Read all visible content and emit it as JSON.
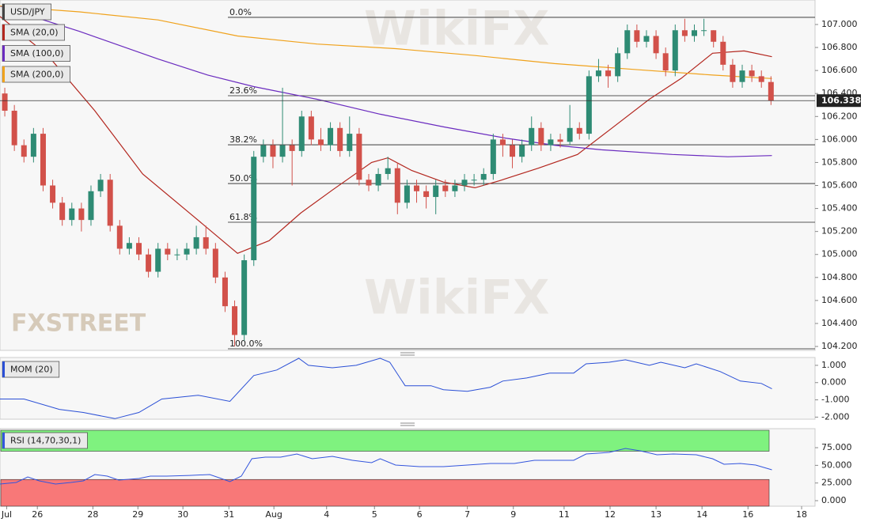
{
  "watermark": "WikiFX",
  "logo": "FXSTREET",
  "chart_data": [
    {
      "type": "candlestick",
      "symbol": "USD/JPY",
      "up_color": "#2e8b74",
      "down_color": "#d2514a",
      "open": [
        106.4,
        106.25,
        105.95,
        105.85,
        106.05,
        105.6,
        105.45,
        105.3,
        105.4,
        105.3,
        105.55,
        105.65,
        105.25,
        105.05,
        105.1,
        105.0,
        104.85,
        105.05,
        105.0,
        105.0,
        105.05,
        105.15,
        105.05,
        104.8,
        104.55,
        104.3,
        104.95,
        105.85,
        105.95,
        105.85,
        105.95,
        105.9,
        106.2,
        106.0,
        105.95,
        106.1,
        105.9,
        106.05,
        105.65,
        105.6,
        105.7,
        105.75,
        105.45,
        105.6,
        105.55,
        105.5,
        105.6,
        105.55,
        105.6,
        105.65,
        105.65,
        105.7,
        106.0,
        105.95,
        105.85,
        105.95,
        106.1,
        105.95,
        106.0,
        105.98,
        106.1,
        106.05,
        106.55,
        106.6,
        106.55,
        106.75,
        106.95,
        106.85,
        106.9,
        106.75,
        106.6,
        106.95,
        106.9,
        106.95,
        106.95,
        106.85,
        106.65,
        106.5,
        106.6,
        106.55,
        106.5
      ],
      "high": [
        106.45,
        106.3,
        106.0,
        106.1,
        106.1,
        105.65,
        105.5,
        105.45,
        105.45,
        105.6,
        105.7,
        105.7,
        105.3,
        105.15,
        105.15,
        105.05,
        105.1,
        105.1,
        105.05,
        105.1,
        105.25,
        105.25,
        105.1,
        104.85,
        104.6,
        105.0,
        105.9,
        106.0,
        106.0,
        106.45,
        106.0,
        106.25,
        106.25,
        106.1,
        106.15,
        106.15,
        106.2,
        106.1,
        105.7,
        105.75,
        105.85,
        105.8,
        105.65,
        105.65,
        105.6,
        105.65,
        105.65,
        105.65,
        105.7,
        105.7,
        105.75,
        106.05,
        106.05,
        106.0,
        106.0,
        106.2,
        106.15,
        106.05,
        106.05,
        106.3,
        106.15,
        106.6,
        106.7,
        106.65,
        106.8,
        107.0,
        107.0,
        106.95,
        106.95,
        106.8,
        107.0,
        107.05,
        107.0,
        107.05,
        106.95,
        106.9,
        106.7,
        106.65,
        106.65,
        106.6,
        106.55
      ],
      "low": [
        106.2,
        105.9,
        105.8,
        105.8,
        105.55,
        105.4,
        105.25,
        105.25,
        105.2,
        105.25,
        105.5,
        105.2,
        105.0,
        105.0,
        104.95,
        104.8,
        104.8,
        104.95,
        104.95,
        104.95,
        105.0,
        105.0,
        104.75,
        104.5,
        104.2,
        104.25,
        104.9,
        105.8,
        105.75,
        105.8,
        105.6,
        105.85,
        105.95,
        105.9,
        105.9,
        105.85,
        105.85,
        105.6,
        105.55,
        105.55,
        105.65,
        105.35,
        105.4,
        105.45,
        105.4,
        105.35,
        105.5,
        105.5,
        105.55,
        105.6,
        105.6,
        105.65,
        105.85,
        105.75,
        105.8,
        105.9,
        105.9,
        105.9,
        105.93,
        105.95,
        106.0,
        106.0,
        106.5,
        106.45,
        106.5,
        106.7,
        106.8,
        106.8,
        106.7,
        106.55,
        106.55,
        106.85,
        106.85,
        106.9,
        106.8,
        106.6,
        106.45,
        106.45,
        106.5,
        106.45,
        106.3
      ],
      "close": [
        106.25,
        105.95,
        105.85,
        106.05,
        105.6,
        105.45,
        105.3,
        105.4,
        105.3,
        105.55,
        105.65,
        105.25,
        105.05,
        105.1,
        105.0,
        104.85,
        105.05,
        105.0,
        105.0,
        105.05,
        105.15,
        105.05,
        104.8,
        104.55,
        104.3,
        104.95,
        105.85,
        105.95,
        105.85,
        105.95,
        105.9,
        106.2,
        106.0,
        105.95,
        106.1,
        105.9,
        106.05,
        105.65,
        105.6,
        105.7,
        105.75,
        105.45,
        105.6,
        105.55,
        105.5,
        105.6,
        105.55,
        105.6,
        105.65,
        105.65,
        105.7,
        106.0,
        105.95,
        105.85,
        105.95,
        106.1,
        105.95,
        106.0,
        105.98,
        106.1,
        106.05,
        106.55,
        106.6,
        106.55,
        106.75,
        106.95,
        106.85,
        106.9,
        106.75,
        106.6,
        106.95,
        106.9,
        106.95,
        106.95,
        106.85,
        106.65,
        106.5,
        106.6,
        106.55,
        106.5,
        106.338
      ],
      "series": [
        {
          "name": "SMA (20,0)",
          "color": "#b3261e",
          "x": [
            -0.5,
            4.5,
            9.4,
            14.4,
            19.3,
            24.3,
            27.6,
            30.9,
            34.2,
            38.3,
            40,
            42.5,
            45.8,
            49.1,
            51.6,
            55.7,
            59.8,
            63.1,
            67.3,
            70.6,
            73.9,
            77.2,
            80.1
          ],
          "values": [
            107.07,
            106.73,
            106.25,
            105.7,
            105.36,
            105.01,
            105.12,
            105.36,
            105.56,
            105.8,
            105.84,
            105.73,
            105.63,
            105.58,
            105.64,
            105.75,
            105.87,
            106.08,
            106.35,
            106.53,
            106.75,
            106.77,
            106.72
          ]
        },
        {
          "name": "SMA (100,0)",
          "color": "#6a2bbf",
          "x": [
            -0.5,
            7.8,
            16,
            21.2,
            26,
            32.6,
            39.2,
            45.8,
            52.4,
            57.4,
            62.3,
            69.7,
            75.5,
            80.1
          ],
          "values": [
            107.16,
            106.94,
            106.7,
            106.56,
            106.46,
            106.35,
            106.22,
            106.11,
            106.01,
            105.95,
            105.91,
            105.87,
            105.85,
            105.86
          ]
        },
        {
          "name": "SMA (200,0)",
          "color": "#f0a21c",
          "x": [
            -0.5,
            7.8,
            16,
            24.3,
            32.6,
            40.8,
            49.1,
            57.4,
            65.6,
            73.9,
            80.1
          ],
          "values": [
            107.16,
            107.11,
            107.04,
            106.9,
            106.83,
            106.79,
            106.73,
            106.66,
            106.61,
            106.56,
            106.53
          ]
        }
      ],
      "fibs": [
        {
          "label": "0.0%",
          "price": 107.062
        },
        {
          "label": "23.6%",
          "price": 106.381
        },
        {
          "label": "38.2%",
          "price": 105.954
        },
        {
          "label": "50.0%",
          "price": 105.617
        },
        {
          "label": "61.8%",
          "price": 105.28
        },
        {
          "label": "100.0%",
          "price": 104.18
        }
      ],
      "last_price": 106.338,
      "xlim": [
        -0.5,
        84.6
      ],
      "xticks": [
        {
          "value": 0.2,
          "label": "Jul"
        },
        {
          "value": 3.4,
          "label": "26"
        },
        {
          "value": 9.2,
          "label": "28"
        },
        {
          "value": 13.9,
          "label": "29"
        },
        {
          "value": 18.6,
          "label": "30"
        },
        {
          "value": 23.4,
          "label": "31"
        },
        {
          "value": 28.1,
          "label": "Aug"
        },
        {
          "value": 33.6,
          "label": "4"
        },
        {
          "value": 38.6,
          "label": "5"
        },
        {
          "value": 43.3,
          "label": "6"
        },
        {
          "value": 48.3,
          "label": "7"
        },
        {
          "value": 53.1,
          "label": "9"
        },
        {
          "value": 58.4,
          "label": "11"
        },
        {
          "value": 63.2,
          "label": "12"
        },
        {
          "value": 68.0,
          "label": "13"
        },
        {
          "value": 72.8,
          "label": "14"
        },
        {
          "value": 77.6,
          "label": "16"
        },
        {
          "value": 83.2,
          "label": "18"
        }
      ],
      "ylim": [
        104.166,
        107.213
      ],
      "yticks": [
        {
          "value": 104.2,
          "label": "104.200"
        },
        {
          "value": 104.4,
          "label": "104.400"
        },
        {
          "value": 104.6,
          "label": "104.600"
        },
        {
          "value": 104.8,
          "label": "104.800"
        },
        {
          "value": 105.0,
          "label": "105.000"
        },
        {
          "value": 105.2,
          "label": "105.200"
        },
        {
          "value": 105.4,
          "label": "105.400"
        },
        {
          "value": 105.6,
          "label": "105.600"
        },
        {
          "value": 105.8,
          "label": "105.800"
        },
        {
          "value": 106.0,
          "label": "106.000"
        },
        {
          "value": 106.2,
          "label": "106.200"
        },
        {
          "value": 106.4,
          "label": "106.400"
        },
        {
          "value": 106.6,
          "label": "106.600"
        },
        {
          "value": 106.8,
          "label": "106.800"
        },
        {
          "value": 107.0,
          "label": "107.000"
        }
      ]
    },
    {
      "type": "line",
      "title": "MOM (20)",
      "color": "#2a4fd6",
      "x": [
        -0.5,
        2,
        5.7,
        8.2,
        11.5,
        14,
        16.4,
        20.2,
        23.5,
        26,
        28.4,
        30.7,
        31.7,
        34.2,
        36.7,
        39.2,
        40.2,
        41.8,
        44.5,
        45.8,
        48.3,
        50.7,
        52,
        54.5,
        56.9,
        59.4,
        60.7,
        63.1,
        64.8,
        67.3,
        68.5,
        71,
        72.2,
        74.7,
        76.8,
        79,
        80.1
      ],
      "values": [
        -0.95,
        -0.95,
        -1.55,
        -1.73,
        -2.09,
        -1.73,
        -0.95,
        -0.73,
        -1.09,
        0.41,
        0.73,
        1.41,
        1.0,
        0.86,
        1.0,
        1.41,
        1.18,
        -0.18,
        -0.18,
        -0.41,
        -0.5,
        -0.27,
        0.09,
        0.27,
        0.55,
        0.55,
        1.09,
        1.18,
        1.32,
        1.0,
        1.18,
        0.86,
        1.09,
        0.64,
        0.09,
        -0.05,
        -0.36
      ],
      "ylim": [
        -2.12,
        1.455
      ],
      "yticks": [
        {
          "value": 1,
          "label": "1.000"
        },
        {
          "value": 0,
          "label": "0.000"
        },
        {
          "value": -1,
          "label": "-1.000"
        },
        {
          "value": -2,
          "label": "-2.000"
        }
      ]
    },
    {
      "type": "line",
      "title": "RSI (14,70,30,1)",
      "color": "#3355dd",
      "overbought": 70,
      "oversold": 30,
      "overbought_color": "#7ff27f",
      "oversold_color": "#f87878",
      "x": [
        -0.5,
        1.2,
        2.4,
        3.6,
        5.3,
        6.9,
        8.2,
        9.4,
        10.7,
        11.9,
        14.0,
        15.2,
        16.9,
        19.3,
        21.4,
        22.6,
        23.5,
        24.7,
        25.8,
        27.2,
        28.8,
        30.5,
        32.1,
        34.2,
        36.3,
        38.3,
        39.2,
        40.8,
        43.3,
        45.8,
        48.3,
        50.7,
        53.2,
        55.3,
        57.4,
        59.4,
        60.7,
        63.1,
        64.8,
        66.4,
        68.1,
        69.8,
        72.2,
        73.9,
        75.1,
        76.8,
        78.4,
        80.1
      ],
      "values": [
        23.5,
        25.8,
        33.6,
        28.0,
        23.5,
        25.8,
        28.0,
        37.0,
        34.7,
        29.1,
        31.4,
        34.7,
        34.7,
        35.8,
        37.0,
        31.4,
        26.9,
        34.7,
        59.4,
        61.6,
        61.6,
        66.1,
        59.4,
        62.7,
        57.1,
        53.8,
        59.4,
        50.4,
        48.2,
        48.2,
        50.4,
        52.6,
        52.6,
        57.1,
        57.1,
        57.1,
        66.1,
        68.3,
        73.9,
        70.5,
        65.0,
        66.1,
        65.0,
        59.4,
        51.5,
        52.6,
        50.4,
        43.7
      ],
      "ylim": [
        -7.8,
        101.9
      ],
      "yticks": [
        {
          "value": 75,
          "label": "75.000"
        },
        {
          "value": 50,
          "label": "50.000"
        },
        {
          "value": 25,
          "label": "25.000"
        },
        {
          "value": 0,
          "label": "0.000"
        }
      ]
    }
  ]
}
